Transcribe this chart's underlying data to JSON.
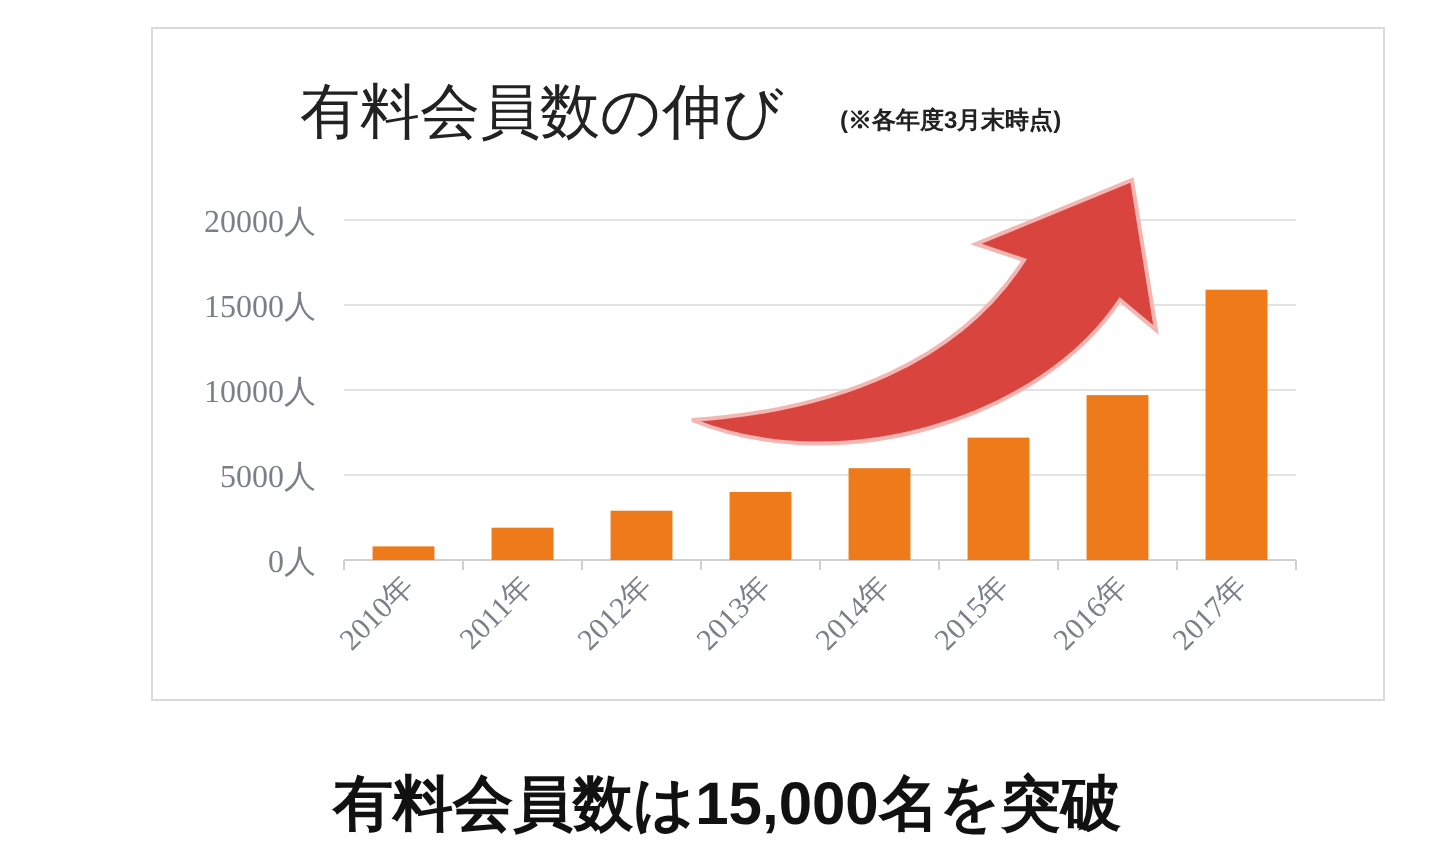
{
  "chart_data": {
    "type": "bar",
    "title": "有料会員数の伸び",
    "subtitle": "(※各年度3月末時点)",
    "categories": [
      "2010年",
      "2011年",
      "2012年",
      "2013年",
      "2014年",
      "2015年",
      "2016年",
      "2017年"
    ],
    "series": [
      {
        "color": "#ef7a1a",
        "values": [
          800,
          1900,
          2900,
          4000,
          5400,
          7200,
          9700,
          15900
        ]
      }
    ],
    "ylim": [
      0,
      20000
    ],
    "yticks": [
      {
        "value": 0,
        "label": "0人"
      },
      {
        "value": 5000,
        "label": "5000人"
      },
      {
        "value": 10000,
        "label": "10000人"
      },
      {
        "value": 15000,
        "label": "15000人"
      },
      {
        "value": 20000,
        "label": "20000人"
      }
    ],
    "grid": "y",
    "annotations": [
      "有料会員数は15,000名を突破"
    ]
  }
}
